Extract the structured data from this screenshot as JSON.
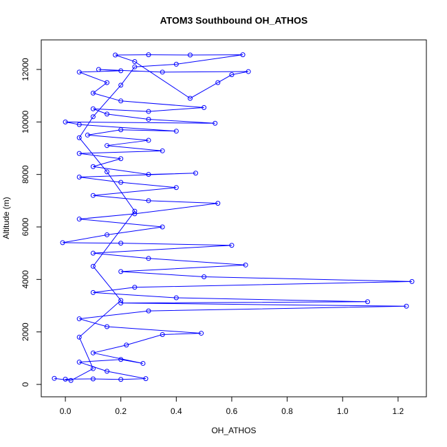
{
  "chart_data": {
    "type": "line",
    "markers": true,
    "title": "ATOM3 Southbound OH_ATHOS",
    "xlabel": "OH_ATHOS",
    "ylabel": "Altitude (m)",
    "color": "#0000ff",
    "x": [
      0.0,
      0.1,
      0.2,
      0.29,
      0.15,
      0.05,
      0.2,
      0.28,
      0.1,
      0.22,
      0.35,
      0.49,
      0.15,
      0.05,
      0.3,
      1.23,
      0.2,
      1.09,
      0.4,
      0.1,
      0.25,
      1.25,
      0.5,
      0.2,
      0.65,
      0.3,
      0.1,
      0.6,
      0.2,
      -0.01,
      0.15,
      0.35,
      0.05,
      0.25,
      0.55,
      0.3,
      0.1,
      0.4,
      0.2,
      0.05,
      0.47,
      0.3,
      0.1,
      0.2,
      0.05,
      0.35,
      0.15,
      0.3,
      0.08,
      0.2,
      0.4,
      0.05,
      0.0,
      0.54,
      0.3,
      0.15,
      0.1,
      0.3,
      0.5,
      0.2,
      0.1,
      0.15,
      0.05,
      0.2,
      0.12,
      0.35,
      0.66,
      0.6,
      0.55,
      0.45,
      0.25,
      0.18,
      0.3,
      0.45,
      0.64,
      0.4,
      0.25,
      0.2,
      0.1,
      0.05,
      0.15,
      0.25,
      0.1,
      0.2,
      0.05,
      0.1,
      0.02,
      -0.04
    ],
    "values": [
      200,
      210,
      190,
      220,
      500,
      850,
      950,
      800,
      1200,
      1500,
      1900,
      1950,
      2200,
      2500,
      2800,
      2980,
      3100,
      3150,
      3300,
      3500,
      3700,
      3920,
      4100,
      4300,
      4550,
      4800,
      5000,
      5300,
      5380,
      5400,
      5700,
      6000,
      6300,
      6500,
      6900,
      7000,
      7200,
      7500,
      7700,
      7900,
      8050,
      8000,
      8300,
      8600,
      8800,
      8900,
      9100,
      9300,
      9500,
      9700,
      9650,
      9900,
      10000,
      9950,
      10100,
      10300,
      10500,
      10400,
      10550,
      10800,
      11100,
      11500,
      11900,
      11950,
      12000,
      11900,
      11920,
      11800,
      11500,
      10900,
      12300,
      12550,
      12560,
      12550,
      12560,
      12200,
      12100,
      11400,
      10200,
      9400,
      8100,
      6600,
      4500,
      3200,
      1800,
      600,
      150,
      230
    ],
    "xlim": [
      -0.087,
      1.302
    ],
    "ylim": [
      -472,
      13127
    ],
    "xticks": [
      {
        "value": 0,
        "label": "0.0"
      },
      0.2,
      0.4,
      0.6,
      0.8,
      {
        "value": 1,
        "label": "1.0"
      },
      1.2
    ],
    "yticks": [
      0,
      2000,
      4000,
      6000,
      8000,
      10000,
      12000
    ]
  }
}
